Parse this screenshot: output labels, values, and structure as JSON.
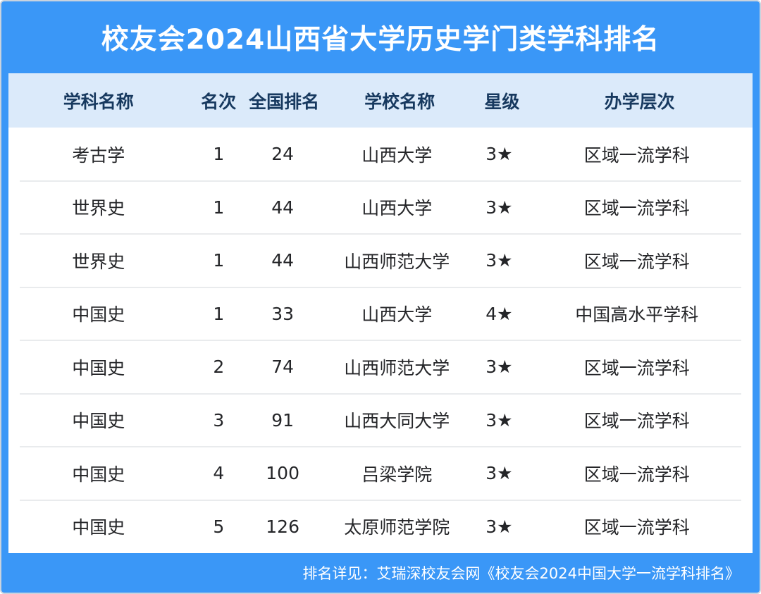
{
  "header": {
    "title": "校友会2024山西省大学历史学门类学科排名"
  },
  "chart_data": {
    "type": "table",
    "title": "校友会2024山西省大学历史学门类学科排名",
    "columns": [
      "学科名称",
      "名次",
      "全国排名",
      "学校名称",
      "星级",
      "办学层次"
    ],
    "rows": [
      [
        "考古学",
        "1",
        "24",
        "山西大学",
        "3★",
        "区域一流学科"
      ],
      [
        "世界史",
        "1",
        "44",
        "山西大学",
        "3★",
        "区域一流学科"
      ],
      [
        "世界史",
        "1",
        "44",
        "山西师范大学",
        "3★",
        "区域一流学科"
      ],
      [
        "中国史",
        "1",
        "33",
        "山西大学",
        "4★",
        "中国高水平学科"
      ],
      [
        "中国史",
        "2",
        "74",
        "山西师范大学",
        "3★",
        "区域一流学科"
      ],
      [
        "中国史",
        "3",
        "91",
        "山西大同大学",
        "3★",
        "区域一流学科"
      ],
      [
        "中国史",
        "4",
        "100",
        "吕梁学院",
        "3★",
        "区域一流学科"
      ],
      [
        "中国史",
        "5",
        "126",
        "太原师范学院",
        "3★",
        "区域一流学科"
      ]
    ]
  },
  "footer": {
    "note": "排名详见：艾瑞深校友会网《校友会2024中国大学一流学科排名》"
  },
  "theme": {
    "banner_blue": "#3A97F7",
    "header_bg": "#DBEAFA",
    "header_text": "#17395F",
    "body_text": "#242528",
    "divider": "#E9EBED",
    "frame_border": "#C9D3DE",
    "footer_text": "#FFFFFF"
  }
}
